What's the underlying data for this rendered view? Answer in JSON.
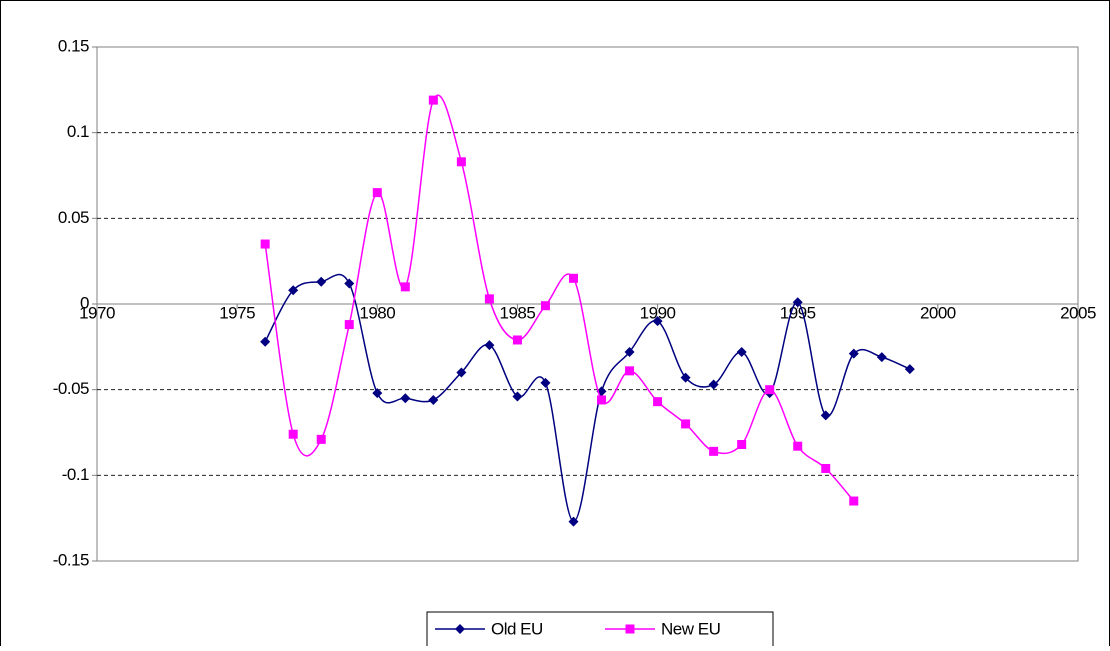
{
  "chart_data": {
    "type": "line",
    "x": [
      1976,
      1977,
      1978,
      1979,
      1980,
      1981,
      1982,
      1983,
      1984,
      1985,
      1986,
      1987,
      1988,
      1989,
      1990,
      1991,
      1992,
      1993,
      1994,
      1995,
      1996,
      1997,
      1998,
      1999
    ],
    "series": [
      {
        "name": "Old EU",
        "color": "#000080",
        "marker": "diamond",
        "values": [
          -0.022,
          0.008,
          0.013,
          0.012,
          -0.052,
          -0.055,
          -0.056,
          -0.04,
          -0.024,
          -0.054,
          -0.046,
          -0.127,
          -0.051,
          -0.028,
          -0.01,
          -0.043,
          -0.047,
          -0.028,
          -0.052,
          0.001,
          -0.065,
          -0.029,
          -0.031,
          -0.038
        ]
      },
      {
        "name": "New EU",
        "color": "#ff00ff",
        "marker": "square",
        "values": [
          0.035,
          -0.076,
          -0.079,
          -0.012,
          0.065,
          0.01,
          0.119,
          0.083,
          0.003,
          -0.021,
          -0.001,
          0.015,
          -0.056,
          -0.039,
          -0.057,
          -0.07,
          -0.086,
          -0.082,
          -0.05,
          -0.083,
          -0.096,
          -0.115,
          null,
          null
        ]
      }
    ],
    "xlim": [
      1970,
      2005
    ],
    "xticks": [
      1970,
      1975,
      1980,
      1985,
      1990,
      1995,
      2000,
      2005
    ],
    "ylim": [
      -0.15,
      0.15
    ],
    "yticks": [
      -0.15,
      -0.1,
      -0.05,
      0,
      0.05,
      0.1,
      0.15
    ],
    "grid": true,
    "smooth": true,
    "legend": "bottom"
  }
}
